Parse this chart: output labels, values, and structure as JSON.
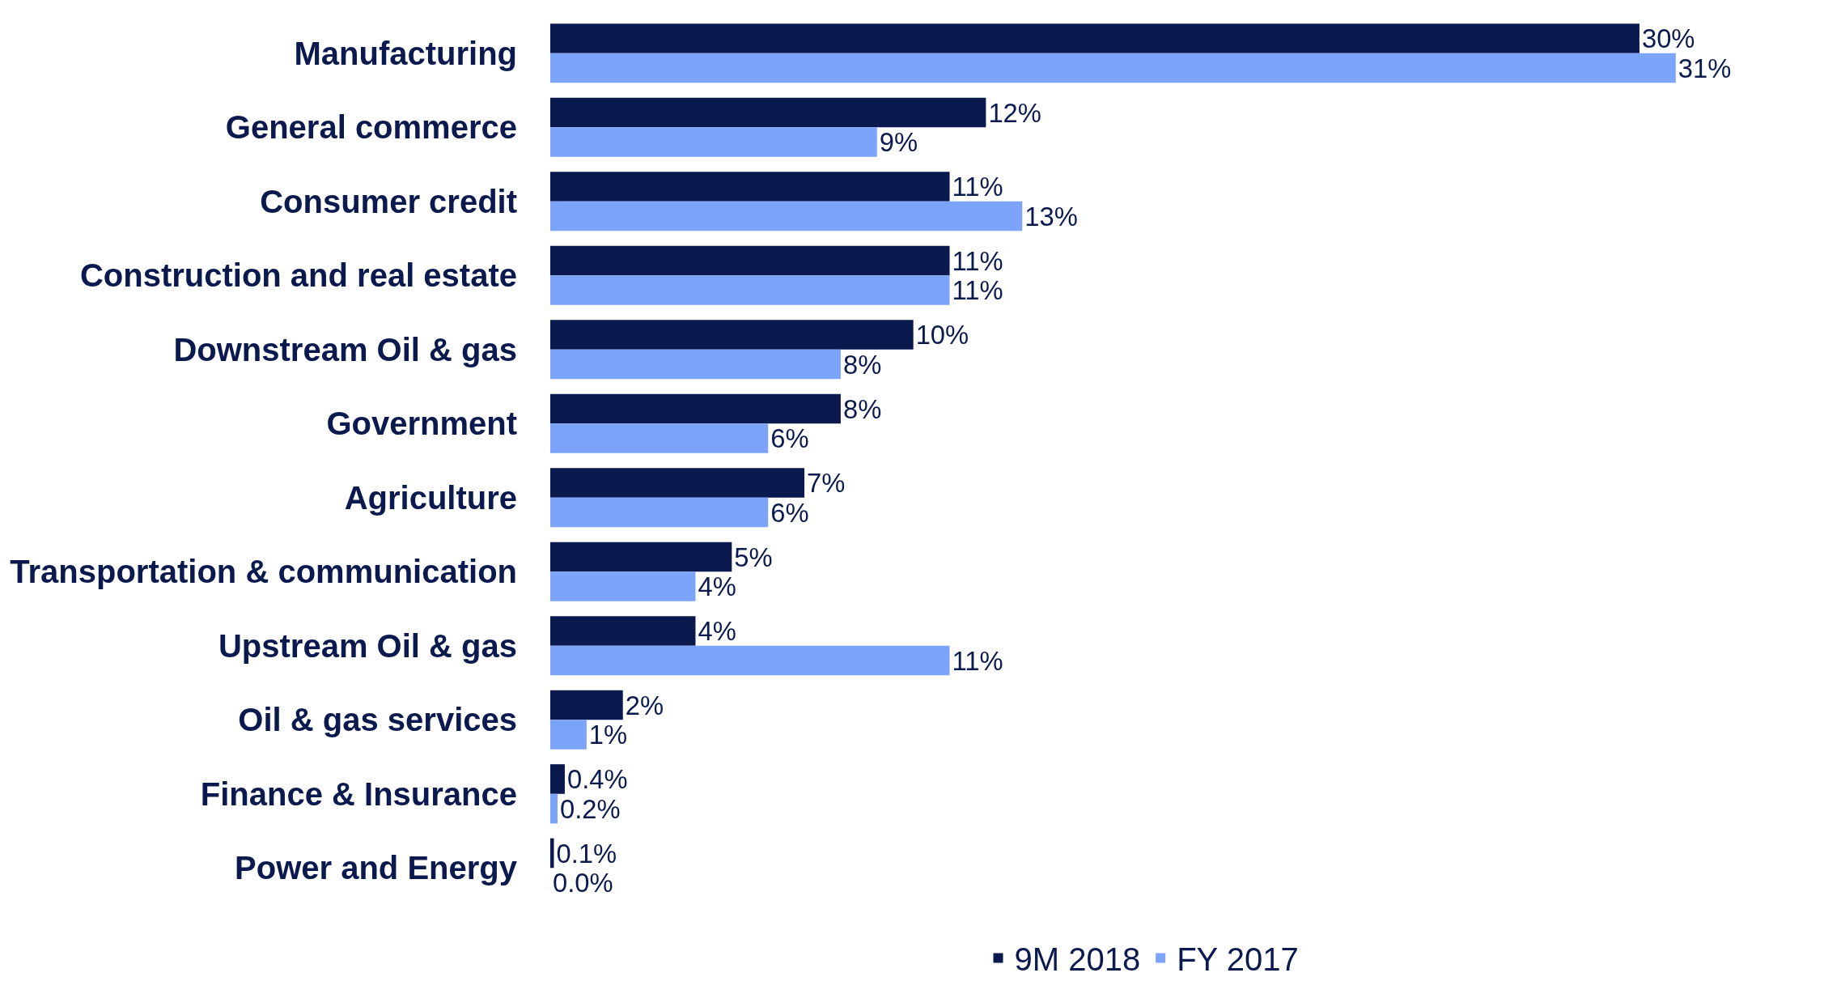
{
  "chart_data": {
    "type": "bar",
    "orientation": "horizontal",
    "legend": "bottom",
    "grid": false,
    "categories": [
      "Manufacturing",
      "General commerce",
      "Consumer credit",
      "Construction and real estate",
      "Downstream Oil & gas",
      "Government",
      "Agriculture",
      "Transportation & communication",
      "Upstream Oil & gas",
      "Oil & gas services",
      "Finance & Insurance",
      "Power and Energy"
    ],
    "series": [
      {
        "name": "9M 2018",
        "color": "#0b1a4e",
        "values": [
          30,
          12,
          11,
          11,
          10,
          8,
          7,
          5,
          4,
          2,
          0.4,
          0.1
        ],
        "value_labels": [
          "30%",
          "12%",
          "11%",
          "11%",
          "10%",
          "8%",
          "7%",
          "5%",
          "4%",
          "2%",
          "0.4%",
          "0.1%"
        ]
      },
      {
        "name": "FY 2017",
        "color": "#7ba4fa",
        "values": [
          31,
          9,
          13,
          11,
          8,
          6,
          6,
          4,
          11,
          1,
          0.2,
          0.0
        ],
        "value_labels": [
          "31%",
          "9%",
          "13%",
          "11%",
          "8%",
          "6%",
          "6%",
          "4%",
          "11%",
          "1%",
          "0.2%",
          "0.0%"
        ]
      }
    ]
  }
}
